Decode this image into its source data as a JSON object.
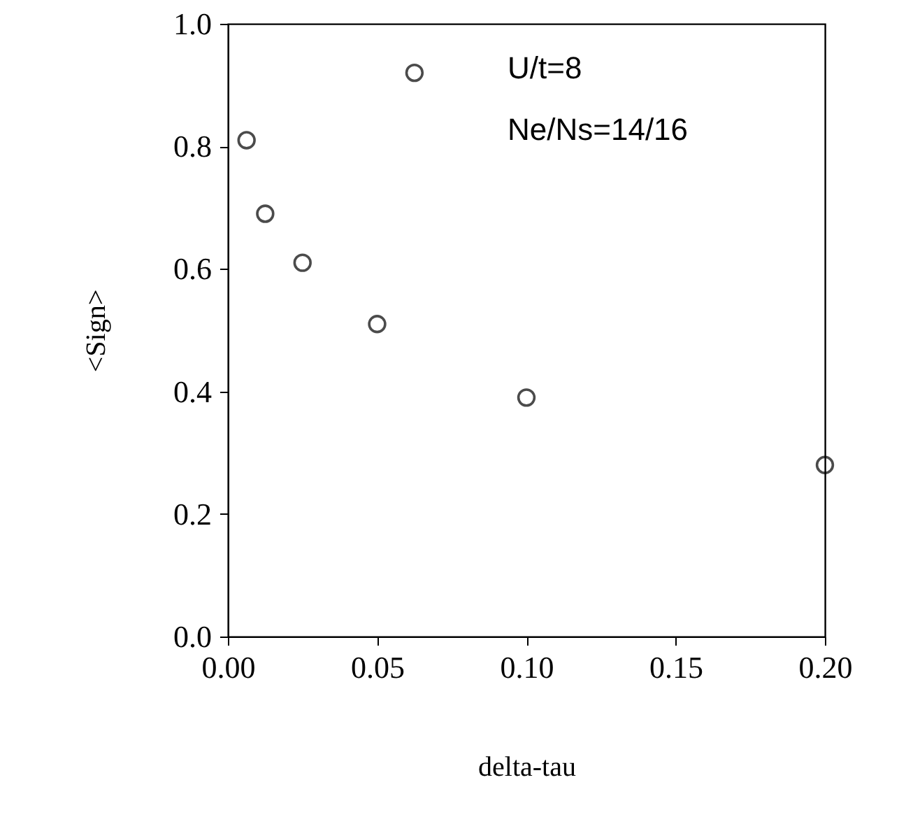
{
  "chart_data": {
    "type": "scatter",
    "xlabel": "delta-tau",
    "ylabel": "<Sign>",
    "x": [
      0.00625,
      0.0125,
      0.025,
      0.05,
      0.0625,
      0.1,
      0.2
    ],
    "values": [
      0.81,
      0.69,
      0.61,
      0.51,
      0.92,
      0.39,
      0.28
    ],
    "color": "#000000",
    "marker": "circle",
    "grid": false,
    "xlim": [
      0,
      0.2
    ],
    "xticks": [
      {
        "value": 0,
        "label": "0.00"
      },
      {
        "value": 0.05,
        "label": "0.05"
      },
      {
        "value": 0.1,
        "label": "0.10"
      },
      {
        "value": 0.15,
        "label": "0.15"
      },
      {
        "value": 0.2,
        "label": "0.20"
      }
    ],
    "ylim": [
      0,
      1
    ],
    "yticks": [
      {
        "value": 0,
        "label": "0.0"
      },
      {
        "value": 0.2,
        "label": "0.2"
      },
      {
        "value": 0.4,
        "label": "0.4"
      },
      {
        "value": 0.6,
        "label": "0.6"
      },
      {
        "value": 0.8,
        "label": "0.8"
      },
      {
        "value": 1,
        "label": "1.0"
      }
    ],
    "annotations": [
      "U/t=8",
      "Ne/Ns=14/16"
    ]
  }
}
